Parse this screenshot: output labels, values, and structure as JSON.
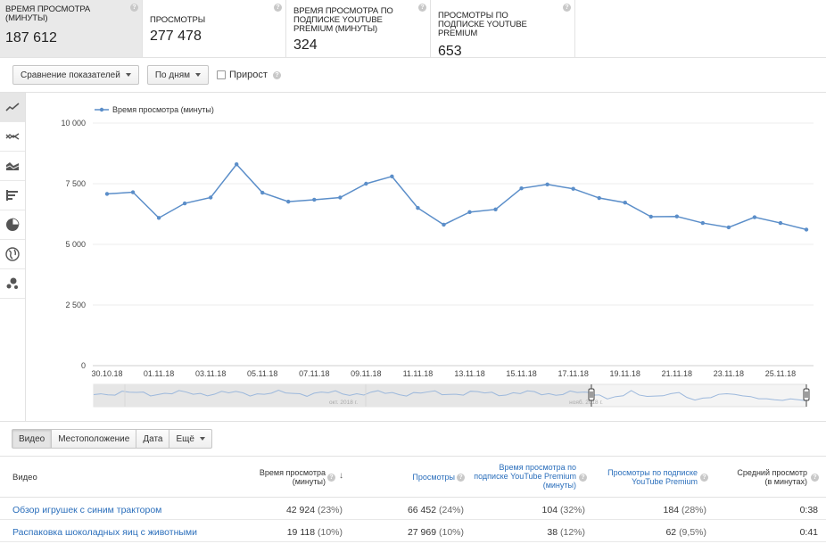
{
  "metrics": [
    {
      "title": "ВРЕМЯ ПРОСМОТРА (МИНУТЫ)",
      "value": "187 612",
      "active": true
    },
    {
      "title": "ПРОСМОТРЫ",
      "value": "277 478",
      "active": false
    },
    {
      "title": "ВРЕМЯ ПРОСМОТРА ПО ПОДПИСКЕ YOUTUBE PREMIUM (МИНУТЫ)",
      "value": "324",
      "active": false
    },
    {
      "title": "ПРОСМОТРЫ ПО ПОДПИСКЕ YOUTUBE PREMIUM",
      "value": "653",
      "active": false
    }
  ],
  "toolbar": {
    "compare_label": "Сравнение показателей",
    "period_label": "По дням",
    "growth_label": "Прирост",
    "help_glyph": "?"
  },
  "side_icons": [
    "line-chart-icon",
    "multi-line-chart-icon",
    "area-chart-icon",
    "bar-chart-icon",
    "pie-chart-icon",
    "globe-map-icon",
    "bubble-chart-icon"
  ],
  "chart_data": {
    "type": "line",
    "series": [
      {
        "name": "Время просмотра (минуты)",
        "color": "#5b8ec9",
        "values": [
          7080,
          7150,
          6090,
          6690,
          6930,
          8300,
          7130,
          6760,
          6840,
          6930,
          7500,
          7800,
          6500,
          5810,
          6330,
          6440,
          7310,
          7470,
          7290,
          6910,
          6720,
          6140,
          6150,
          5880,
          5700,
          6120,
          5880,
          5610
        ]
      }
    ],
    "x": [
      "30.10.18",
      "31.10.18",
      "01.11.18",
      "02.11.18",
      "03.11.18",
      "04.11.18",
      "05.11.18",
      "06.11.18",
      "07.11.18",
      "08.11.18",
      "09.11.18",
      "10.11.18",
      "11.11.18",
      "12.11.18",
      "13.11.18",
      "14.11.18",
      "15.11.18",
      "16.11.18",
      "17.11.18",
      "18.11.18",
      "19.11.18",
      "20.11.18",
      "21.11.18",
      "22.11.18",
      "23.11.18",
      "24.11.18",
      "25.11.18",
      "26.11.18"
    ],
    "x_tick_labels": [
      "30.10.18",
      "01.11.18",
      "03.11.18",
      "05.11.18",
      "07.11.18",
      "09.11.18",
      "11.11.18",
      "13.11.18",
      "15.11.18",
      "17.11.18",
      "19.11.18",
      "21.11.18",
      "23.11.18",
      "25.11.18"
    ],
    "y_ticks": [
      "0",
      "2 500",
      "5 000",
      "7 500",
      "10 000"
    ],
    "ylim": [
      0,
      10000
    ],
    "grid": true,
    "legend": "top-left",
    "navigator_labels": [
      "окт. 2018 г.",
      "нояб. 2018 г."
    ]
  },
  "tabs": [
    {
      "label": "Видео",
      "active": true
    },
    {
      "label": "Местоположение",
      "active": false
    },
    {
      "label": "Дата",
      "active": false
    },
    {
      "label": "Ещё",
      "active": false,
      "dropdown": true
    }
  ],
  "table": {
    "headers": {
      "video": "Видео",
      "watch_time": [
        "Время просмотра",
        "(минуты)"
      ],
      "views": "Просмотры",
      "premium_time": [
        "Время просмотра по",
        "подписке YouTube Premium",
        "(минуты)"
      ],
      "premium_views": [
        "Просмотры по подписке",
        "YouTube Premium"
      ],
      "avg": [
        "Средний просмотр",
        "(в минутах)"
      ]
    },
    "sort_arrow": "↓",
    "rows": [
      {
        "title": "Обзор игрушек с синим трактором",
        "watch_time": "42 924",
        "watch_pct": "(23%)",
        "views": "66 452",
        "views_pct": "(24%)",
        "ptime": "104",
        "ptime_pct": "(32%)",
        "pviews": "184",
        "pviews_pct": "(28%)",
        "avg": "0:38"
      },
      {
        "title": "Распаковка шоколадных яиц с животными",
        "watch_time": "19 118",
        "watch_pct": "(10%)",
        "views": "27 969",
        "views_pct": "(10%)",
        "ptime": "38",
        "ptime_pct": "(12%)",
        "pviews": "62",
        "pviews_pct": "(9,5%)",
        "avg": "0:41"
      }
    ]
  }
}
